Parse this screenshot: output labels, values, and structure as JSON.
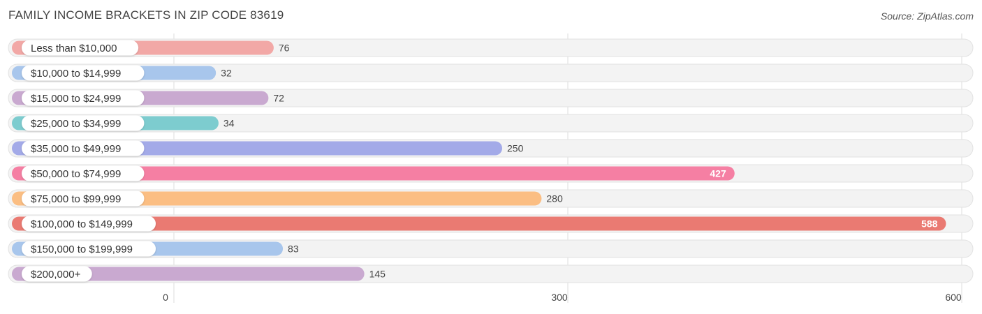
{
  "title": "FAMILY INCOME BRACKETS IN ZIP CODE 83619",
  "source": "Source: ZipAtlas.com",
  "chart_data": {
    "type": "bar",
    "orientation": "horizontal",
    "title": "FAMILY INCOME BRACKETS IN ZIP CODE 83619",
    "categories": [
      "Less than $10,000",
      "$10,000 to $14,999",
      "$15,000 to $24,999",
      "$25,000 to $34,999",
      "$35,000 to $49,999",
      "$50,000 to $74,999",
      "$75,000 to $99,999",
      "$100,000 to $149,999",
      "$150,000 to $199,999",
      "$200,000+"
    ],
    "values": [
      76,
      32,
      72,
      34,
      250,
      427,
      280,
      588,
      83,
      145
    ],
    "colors": [
      "#f2a8a6",
      "#a8c6ec",
      "#c9a9d0",
      "#7dcccf",
      "#a3aae8",
      "#f57fa3",
      "#fbbe83",
      "#ea7a72",
      "#a8c6ec",
      "#c9a9d0"
    ],
    "xlim": [
      0,
      600
    ],
    "ticks": [
      0,
      300,
      600
    ],
    "tick_labels": [
      "0",
      "300",
      "600"
    ],
    "grid": true
  }
}
